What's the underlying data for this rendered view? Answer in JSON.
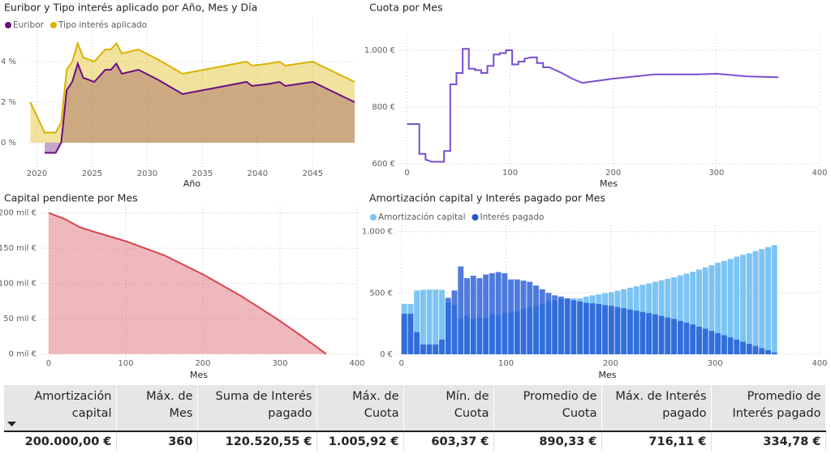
{
  "chart_data": [
    {
      "type": "area",
      "title": "Euribor y Tipo interés aplicado por Año, Mes y Día",
      "x_label": "Año",
      "legend": "top-left",
      "x": [
        2019.4,
        2020.7,
        2021.7,
        2022.2,
        2022.7,
        2023.2,
        2023.7,
        2024.2,
        2025.2,
        2026.2,
        2026.7,
        2027.2,
        2027.7,
        2029.2,
        2031.0,
        2033.2,
        2039.0,
        2039.5,
        2041.0,
        2042.0,
        2042.5,
        2045.0,
        2048.8
      ],
      "series": [
        {
          "name": "Euribor",
          "color": "#6a0d83",
          "values": [
            null,
            -0.5,
            -0.5,
            0.0,
            2.6,
            3.0,
            3.9,
            3.2,
            3.0,
            3.6,
            3.6,
            3.9,
            3.4,
            3.6,
            3.1,
            2.4,
            3.0,
            2.8,
            2.9,
            3.0,
            2.8,
            3.0,
            2.0
          ]
        },
        {
          "name": "Tipo interés aplicado",
          "color": "#d9b300",
          "values": [
            2.0,
            0.5,
            0.5,
            1.0,
            3.6,
            4.0,
            4.9,
            4.2,
            4.0,
            4.6,
            4.6,
            4.9,
            4.4,
            4.6,
            4.1,
            3.4,
            4.0,
            3.8,
            3.9,
            4.0,
            3.8,
            4.0,
            3.0
          ]
        }
      ],
      "xlim": [
        2019.3,
        2048.8
      ],
      "xticks": [
        2020,
        2025,
        2030,
        2035,
        2040,
        2045
      ],
      "ylim": [
        -1.2,
        6.2
      ],
      "yticks": [
        {
          "value": 0,
          "label": "0 %"
        },
        {
          "value": 2,
          "label": "2 %"
        },
        {
          "value": 4,
          "label": "4 %"
        }
      ],
      "grid": true
    },
    {
      "type": "line",
      "title": "Cuota por Mes",
      "x_label": "Mes",
      "color": "#7a4fd0",
      "x": [
        0,
        12,
        12,
        18,
        18,
        24,
        36,
        36,
        42,
        42,
        48,
        48,
        54,
        54,
        60,
        60,
        66,
        66,
        72,
        72,
        78,
        78,
        84,
        84,
        90,
        90,
        96,
        96,
        102,
        102,
        108,
        108,
        114,
        114,
        120,
        126,
        126,
        132,
        132,
        138,
        150,
        160,
        170,
        200,
        240,
        280,
        300,
        330,
        360
      ],
      "values": [
        740,
        740,
        635,
        635,
        615,
        607,
        607,
        645,
        645,
        880,
        880,
        920,
        920,
        1005,
        1005,
        935,
        935,
        930,
        930,
        920,
        920,
        945,
        945,
        985,
        985,
        990,
        990,
        1000,
        1000,
        950,
        950,
        960,
        960,
        970,
        975,
        975,
        955,
        955,
        940,
        940,
        920,
        900,
        885,
        900,
        915,
        915,
        917,
        908,
        905
      ],
      "xlim": [
        -9,
        400
      ],
      "xticks": [
        0,
        100,
        200,
        300,
        400
      ],
      "ylim": [
        580,
        1060
      ],
      "yticks": [
        {
          "value": 600,
          "label": "600 €"
        },
        {
          "value": 800,
          "label": "800 €"
        },
        {
          "value": 1000,
          "label": "1.000 €"
        }
      ],
      "grid": true
    },
    {
      "type": "area",
      "title": "Capital pendiente por Mes",
      "x_label": "Mes",
      "color": "#d64550",
      "x": [
        0,
        20,
        40,
        60,
        100,
        150,
        200,
        250,
        300,
        330,
        360
      ],
      "values": [
        200000,
        192000,
        180000,
        173000,
        160000,
        140000,
        113000,
        82000,
        47000,
        24000,
        0
      ],
      "xlim": [
        -10.5,
        400
      ],
      "xticks": [
        0,
        100,
        200,
        300,
        400
      ],
      "ylim": [
        -5000,
        210000
      ],
      "yticks": [
        {
          "value": 0,
          "label": "0 mil €"
        },
        {
          "value": 50000,
          "label": "50 mil €"
        },
        {
          "value": 100000,
          "label": "100 mil €"
        },
        {
          "value": 150000,
          "label": "150 mil €"
        },
        {
          "value": 200000,
          "label": "200 mil €"
        }
      ],
      "grid": true
    },
    {
      "type": "bar",
      "title": "Amortización capital y Interés pagado por Mes",
      "x_label": "Mes",
      "legend": "top-left",
      "x": [
        0,
        6,
        12,
        18,
        24,
        30,
        36,
        42,
        48,
        54,
        60,
        66,
        72,
        78,
        84,
        90,
        96,
        102,
        108,
        114,
        120,
        126,
        132,
        138,
        144,
        150,
        156,
        162,
        168,
        174,
        180,
        186,
        192,
        198,
        204,
        210,
        216,
        222,
        228,
        234,
        240,
        246,
        252,
        258,
        264,
        270,
        276,
        282,
        288,
        294,
        300,
        306,
        312,
        318,
        324,
        330,
        336,
        342,
        348,
        354
      ],
      "series": [
        {
          "name": "Amortización capital",
          "color": "#7cc4f4",
          "values": [
            410,
            410,
            520,
            525,
            527,
            527,
            525,
            420,
            400,
            290,
            315,
            290,
            300,
            295,
            325,
            320,
            340,
            340,
            350,
            370,
            385,
            395,
            410,
            430,
            440,
            450,
            455,
            455,
            455,
            470,
            480,
            488,
            498,
            506,
            518,
            530,
            542,
            554,
            566,
            578,
            590,
            603,
            615,
            627,
            643,
            657,
            672,
            690,
            708,
            725,
            745,
            760,
            777,
            795,
            810,
            823,
            840,
            857,
            873,
            890
          ]
        },
        {
          "name": "Interés pagado",
          "color": "#1e56d2",
          "values": [
            330,
            330,
            180,
            80,
            80,
            80,
            120,
            460,
            520,
            716,
            620,
            640,
            620,
            650,
            660,
            670,
            660,
            610,
            610,
            600,
            590,
            560,
            530,
            500,
            480,
            470,
            455,
            440,
            430,
            420,
            415,
            410,
            400,
            395,
            385,
            375,
            365,
            355,
            345,
            335,
            325,
            312,
            300,
            288,
            272,
            258,
            243,
            225,
            208,
            190,
            172,
            155,
            138,
            120,
            102,
            85,
            68,
            50,
            33,
            15
          ]
        }
      ],
      "xlim": [
        -6,
        400
      ],
      "xticks": [
        0,
        100,
        200,
        300,
        400
      ],
      "ylim": [
        -20,
        1050
      ],
      "yticks": [
        {
          "value": 0,
          "label": "0 €"
        },
        {
          "value": 500,
          "label": "500 €"
        },
        {
          "value": 1000,
          "label": "1.000 €"
        }
      ],
      "grid": true
    }
  ],
  "table": {
    "columns": [
      "Amortización capital",
      "Máx. de Mes",
      "Suma de Interés pagado",
      "Máx. de Cuota",
      "Mín. de Cuota",
      "Promedio de Cuota",
      "Máx. de Interés pagado",
      "Promedio de Interés pagado"
    ],
    "rows": [
      [
        "200.000,00 €",
        "360",
        "120.520,55 €",
        "1.005,92 €",
        "603,37 €",
        "890,33 €",
        "716,11 €",
        "334,78 €"
      ]
    ]
  }
}
